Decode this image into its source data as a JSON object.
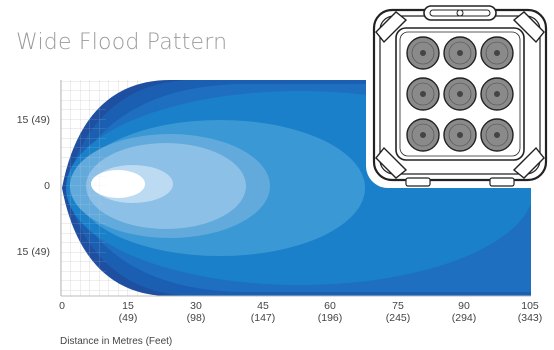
{
  "title": "Wide Flood Pattern",
  "y_labels": [
    {
      "text": "15 (49)"
    },
    {
      "text": "0"
    },
    {
      "text": "15 (49)"
    }
  ],
  "x_labels": [
    {
      "m": "0",
      "ft": ""
    },
    {
      "m": "15",
      "ft": "(49)"
    },
    {
      "m": "30",
      "ft": "(98)"
    },
    {
      "m": "45",
      "ft": "(147)"
    },
    {
      "m": "60",
      "ft": "(196)"
    },
    {
      "m": "75",
      "ft": "(245)"
    },
    {
      "m": "90",
      "ft": "(294)"
    },
    {
      "m": "105",
      "ft": "(343)"
    }
  ],
  "caption": "Distance in Metres (Feet)",
  "colors": {
    "outer": "#1f4fa0",
    "band2": "#1c67bb",
    "band3": "#1c82cc",
    "band4": "#3a9ad6",
    "band5": "#6aaedf",
    "band6": "#a4cdee",
    "core": "#ffffff",
    "grid": "#d9d9d9"
  },
  "product_icon": "9-led-light-pod-icon"
}
